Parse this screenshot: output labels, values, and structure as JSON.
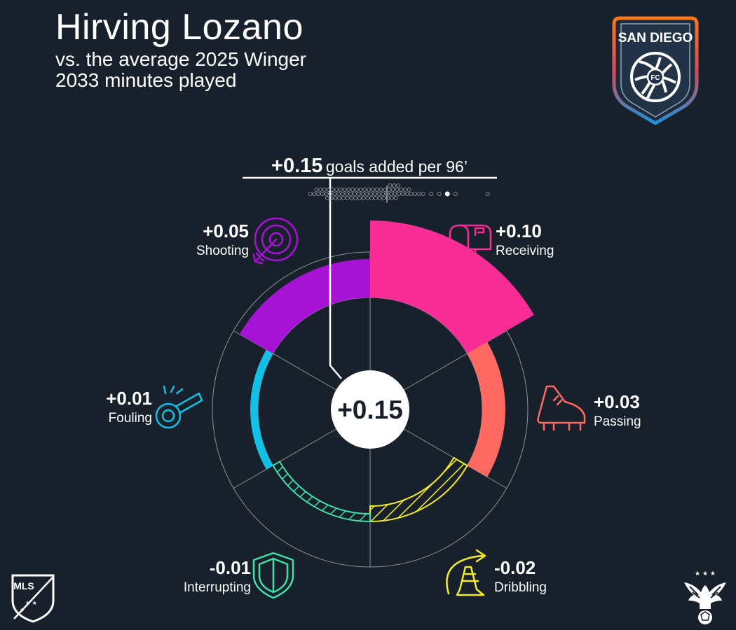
{
  "header": {
    "player_name": "Hirving Lozano",
    "comparison": "vs. the average 2025 Winger",
    "minutes": "2033 minutes played"
  },
  "club_badge": {
    "text": "SAN DIEGO",
    "sub": "FC"
  },
  "league_logo": {
    "text": "MLS"
  },
  "colors": {
    "background": "#18202b",
    "receiving": "#f72c94",
    "passing": "#fe6a62",
    "dribbling": "#f5ef24",
    "interrupting": "#3ee0a8",
    "fouling": "#10c0e6",
    "shooting": "#a713d4"
  },
  "chart_data": {
    "type": "radial_bar",
    "title": "+0.15 goals added per 96’",
    "total": 0.15,
    "total_label": "+0.15",
    "headline": {
      "value": "+0.15",
      "text": "goals added per 96’"
    },
    "categories": [
      {
        "name": "Receiving",
        "value": 0.1,
        "label": "+0.10",
        "color": "#f72c94",
        "icon": "mailbox-icon"
      },
      {
        "name": "Passing",
        "value": 0.03,
        "label": "+0.03",
        "color": "#fe6a62",
        "icon": "cleat-icon"
      },
      {
        "name": "Dribbling",
        "value": -0.02,
        "label": "-0.02",
        "color": "#f5ef24",
        "icon": "cone-arrow-icon"
      },
      {
        "name": "Interrupting",
        "value": -0.01,
        "label": "-0.01",
        "color": "#3ee0a8",
        "icon": "shield-icon"
      },
      {
        "name": "Fouling",
        "value": 0.01,
        "label": "+0.01",
        "color": "#10c0e6",
        "icon": "whistle-icon"
      },
      {
        "name": "Shooting",
        "value": 0.05,
        "label": "+0.05",
        "color": "#a713d4",
        "icon": "target-icon"
      }
    ],
    "distribution": {
      "description": "goals added per 96 for all wingers",
      "values": [
        -0.19,
        -0.18,
        -0.175,
        -0.17,
        -0.165,
        -0.16,
        -0.155,
        -0.15,
        -0.148,
        -0.145,
        -0.14,
        -0.138,
        -0.135,
        -0.13,
        -0.128,
        -0.125,
        -0.12,
        -0.118,
        -0.115,
        -0.11,
        -0.108,
        -0.105,
        -0.1,
        -0.098,
        -0.095,
        -0.09,
        -0.088,
        -0.085,
        -0.08,
        -0.078,
        -0.075,
        -0.07,
        -0.068,
        -0.065,
        -0.06,
        -0.058,
        -0.055,
        -0.05,
        -0.048,
        -0.045,
        -0.04,
        -0.038,
        -0.035,
        -0.03,
        -0.028,
        -0.025,
        -0.02,
        -0.018,
        -0.015,
        -0.01,
        -0.008,
        -0.005,
        0.0,
        0.002,
        0.005,
        0.008,
        0.01,
        0.012,
        0.015,
        0.018,
        0.02,
        0.022,
        0.025,
        0.028,
        0.03,
        0.035,
        0.04,
        0.045,
        0.05,
        0.055,
        0.06,
        0.07,
        0.08,
        0.09,
        0.11,
        0.13,
        0.17,
        0.25
      ],
      "highlight": 0.15,
      "median": 0.0
    }
  }
}
